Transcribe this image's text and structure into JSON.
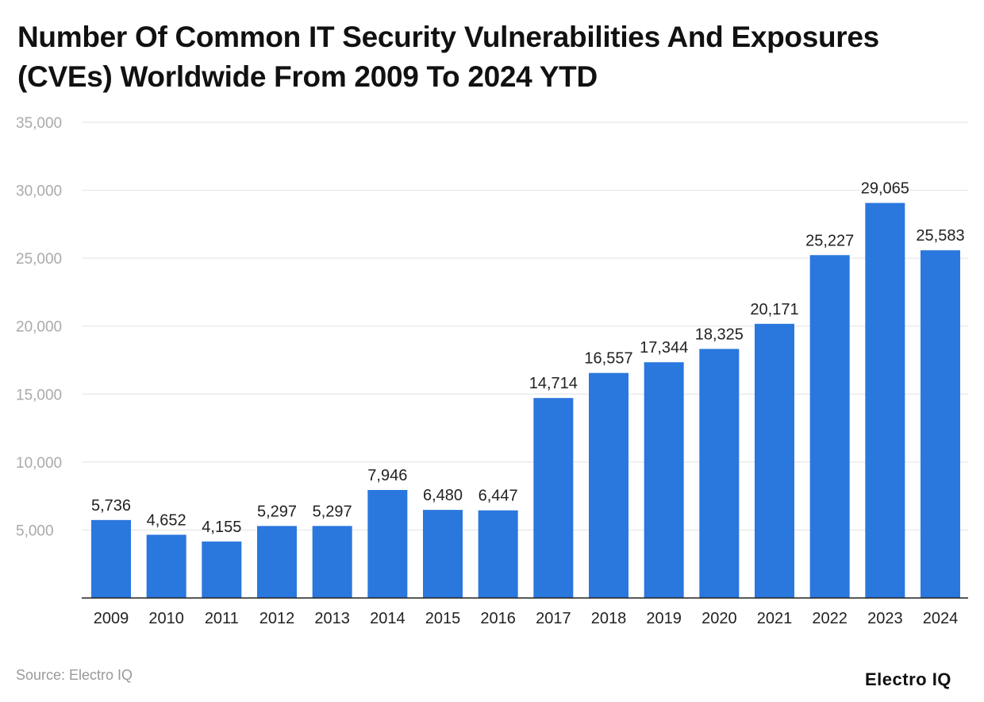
{
  "chart_data": {
    "type": "bar",
    "title": "Number Of Common IT Security Vulnerabilities And Exposures (CVEs) Worldwide From 2009 To 2024 YTD",
    "xlabel": "",
    "ylabel": "",
    "categories": [
      "2009",
      "2010",
      "2011",
      "2012",
      "2013",
      "2014",
      "2015",
      "2016",
      "2017",
      "2018",
      "2019",
      "2020",
      "2021",
      "2022",
      "2023",
      "2024"
    ],
    "values": [
      5736,
      4652,
      4155,
      5297,
      5297,
      7946,
      6480,
      6447,
      14714,
      16557,
      17344,
      18325,
      20171,
      25227,
      29065,
      25583
    ],
    "data_labels": [
      "5,736",
      "4,652",
      "4,155",
      "5,297",
      "5,297",
      "7,946",
      "6,480",
      "6,447",
      "14,714",
      "16,557",
      "17,344",
      "18,325",
      "20,171",
      "25,227",
      "29,065",
      "25,583"
    ],
    "ylim": [
      0,
      35000
    ],
    "yticks": [
      5000,
      10000,
      15000,
      20000,
      25000,
      30000,
      35000
    ],
    "ytick_labels": [
      "5,000",
      "10,000",
      "15,000",
      "20,000",
      "25,000",
      "30,000",
      "35,000"
    ],
    "grid": true,
    "bar_color": "#2a77de"
  },
  "footer": {
    "source": "Source: Electro IQ",
    "logo": "Electro IQ"
  }
}
